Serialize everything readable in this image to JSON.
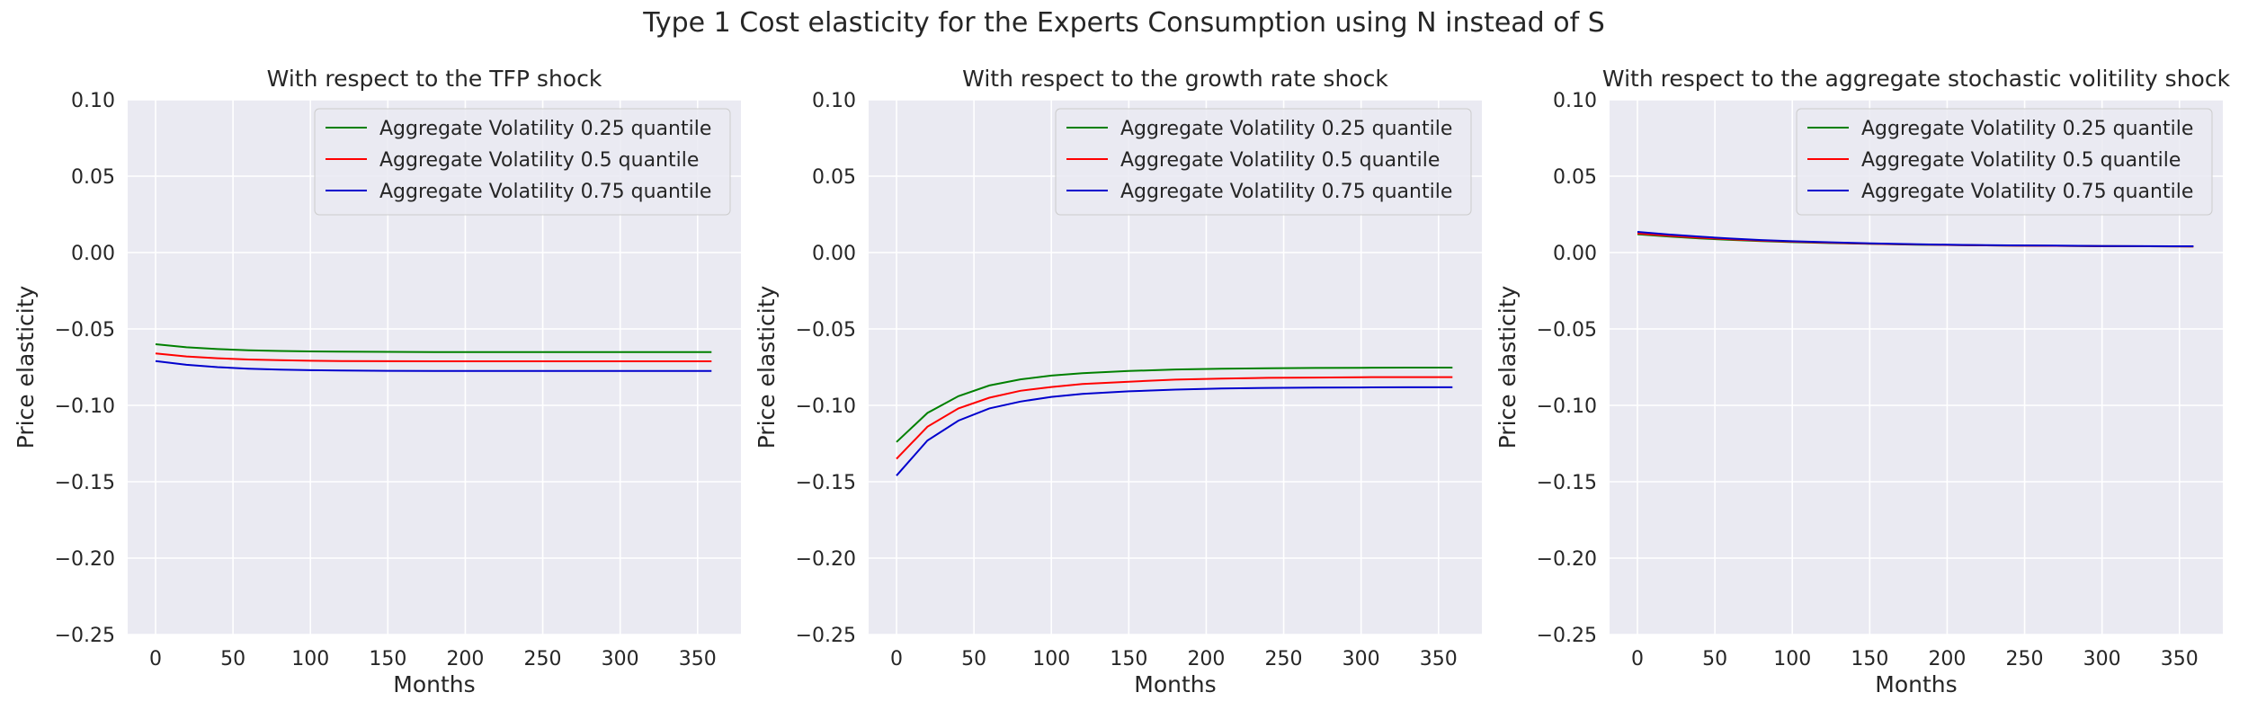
{
  "figure": {
    "title": "Type 1 Cost elasticity for the Experts Consumption using N instead of S"
  },
  "chart_data": [
    {
      "type": "line",
      "title": "With respect to the TFP shock",
      "xlabel": "Months",
      "ylabel": "Price elasticity",
      "xlim": [
        -18,
        378
      ],
      "ylim": [
        -0.25,
        0.1
      ],
      "xticks": [
        0,
        50,
        100,
        150,
        200,
        250,
        300,
        350
      ],
      "yticks": [
        -0.25,
        -0.2,
        -0.15,
        -0.1,
        -0.05,
        0.0,
        0.05,
        0.1
      ],
      "grid": true,
      "legend_position": "top-right",
      "x": [
        0,
        20,
        40,
        60,
        80,
        100,
        120,
        150,
        180,
        210,
        240,
        270,
        300,
        330,
        359
      ],
      "series": [
        {
          "name": "Aggregate Volatility 0.25 quantile",
          "color": "#008000",
          "values": [
            -0.06,
            -0.062,
            -0.0632,
            -0.064,
            -0.0644,
            -0.0647,
            -0.0649,
            -0.065,
            -0.0651,
            -0.0651,
            -0.0651,
            -0.0651,
            -0.0651,
            -0.0651,
            -0.0651
          ]
        },
        {
          "name": "Aggregate Volatility 0.5 quantile",
          "color": "#ff0000",
          "values": [
            -0.066,
            -0.068,
            -0.0692,
            -0.07,
            -0.0705,
            -0.0708,
            -0.071,
            -0.0711,
            -0.0712,
            -0.0712,
            -0.0712,
            -0.0712,
            -0.0712,
            -0.0712,
            -0.0712
          ]
        },
        {
          "name": "Aggregate Volatility 0.75 quantile",
          "color": "#0000cd",
          "values": [
            -0.071,
            -0.0735,
            -0.075,
            -0.076,
            -0.0766,
            -0.077,
            -0.0772,
            -0.0774,
            -0.0775,
            -0.0775,
            -0.0775,
            -0.0775,
            -0.0775,
            -0.0775,
            -0.0775
          ]
        }
      ]
    },
    {
      "type": "line",
      "title": "With respect to the growth rate shock",
      "xlabel": "Months",
      "ylabel": "Price elasticity",
      "xlim": [
        -18,
        378
      ],
      "ylim": [
        -0.25,
        0.1
      ],
      "xticks": [
        0,
        50,
        100,
        150,
        200,
        250,
        300,
        350
      ],
      "yticks": [
        -0.25,
        -0.2,
        -0.15,
        -0.1,
        -0.05,
        0.0,
        0.05,
        0.1
      ],
      "grid": true,
      "legend_position": "top-right",
      "x": [
        0,
        20,
        40,
        60,
        80,
        100,
        120,
        150,
        180,
        210,
        240,
        270,
        300,
        330,
        359
      ],
      "series": [
        {
          "name": "Aggregate Volatility 0.25 quantile",
          "color": "#008000",
          "values": [
            -0.124,
            -0.105,
            -0.094,
            -0.087,
            -0.083,
            -0.0805,
            -0.079,
            -0.0775,
            -0.0765,
            -0.076,
            -0.0757,
            -0.0755,
            -0.0754,
            -0.0753,
            -0.0753
          ]
        },
        {
          "name": "Aggregate Volatility 0.5 quantile",
          "color": "#ff0000",
          "values": [
            -0.135,
            -0.114,
            -0.102,
            -0.095,
            -0.0905,
            -0.088,
            -0.086,
            -0.0845,
            -0.0832,
            -0.0825,
            -0.082,
            -0.0818,
            -0.0816,
            -0.0815,
            -0.0815
          ]
        },
        {
          "name": "Aggregate Volatility 0.75 quantile",
          "color": "#0000cd",
          "values": [
            -0.146,
            -0.123,
            -0.11,
            -0.102,
            -0.0975,
            -0.0945,
            -0.0925,
            -0.0908,
            -0.0897,
            -0.089,
            -0.0886,
            -0.0884,
            -0.0883,
            -0.0882,
            -0.0882
          ]
        }
      ]
    },
    {
      "type": "line",
      "title": "With respect to the aggregate stochastic volitility shock",
      "xlabel": "Months",
      "ylabel": "Price elasticity",
      "xlim": [
        -18,
        378
      ],
      "ylim": [
        -0.25,
        0.1
      ],
      "xticks": [
        0,
        50,
        100,
        150,
        200,
        250,
        300,
        350
      ],
      "yticks": [
        -0.25,
        -0.2,
        -0.15,
        -0.1,
        -0.05,
        0.0,
        0.05,
        0.1
      ],
      "grid": true,
      "legend_position": "top-right",
      "x": [
        0,
        20,
        40,
        60,
        80,
        100,
        120,
        150,
        180,
        210,
        240,
        270,
        300,
        330,
        359
      ],
      "series": [
        {
          "name": "Aggregate Volatility 0.25 quantile",
          "color": "#008000",
          "values": [
            0.012,
            0.0105,
            0.0093,
            0.0083,
            0.0075,
            0.0068,
            0.0063,
            0.0057,
            0.0052,
            0.0048,
            0.0046,
            0.0044,
            0.0042,
            0.0041,
            0.004
          ]
        },
        {
          "name": "Aggregate Volatility 0.5 quantile",
          "color": "#ff0000",
          "values": [
            0.0125,
            0.011,
            0.0097,
            0.0087,
            0.0078,
            0.0071,
            0.0065,
            0.0058,
            0.0053,
            0.0049,
            0.0046,
            0.0044,
            0.0042,
            0.0041,
            0.004
          ]
        },
        {
          "name": "Aggregate Volatility 0.75 quantile",
          "color": "#0000cd",
          "values": [
            0.0135,
            0.0118,
            0.0104,
            0.0092,
            0.0082,
            0.0074,
            0.0068,
            0.006,
            0.0054,
            0.005,
            0.0047,
            0.0045,
            0.0043,
            0.0042,
            0.0041
          ]
        }
      ]
    }
  ]
}
